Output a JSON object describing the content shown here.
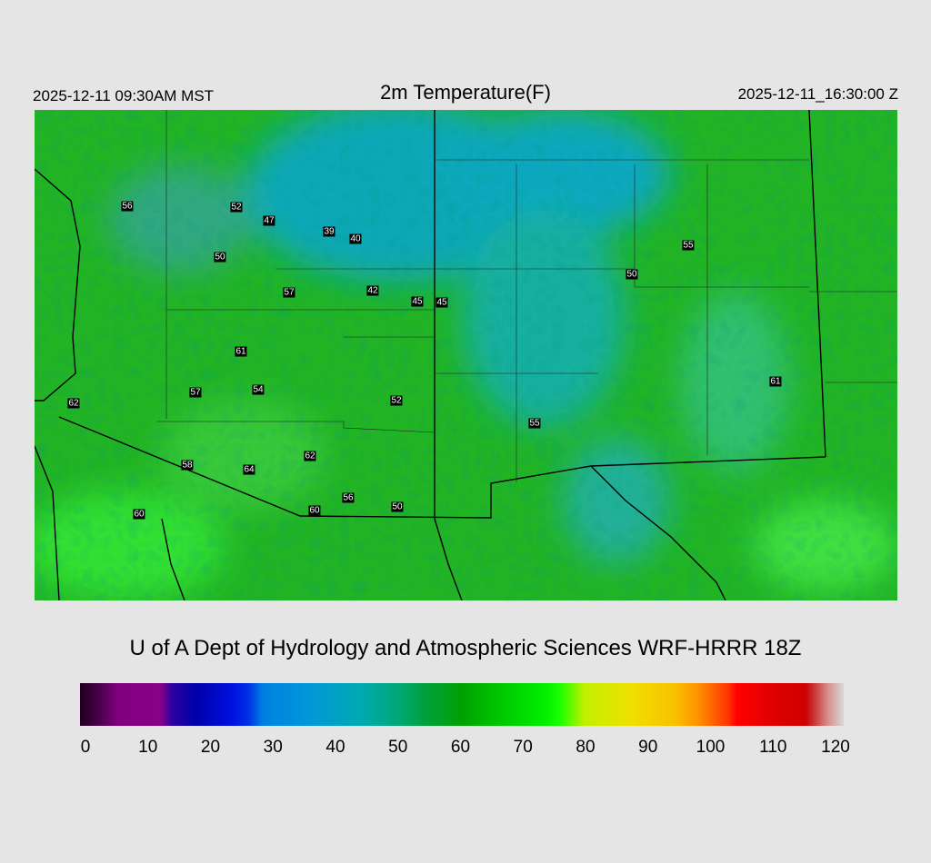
{
  "header": {
    "local_time": "2025-12-11 09:30AM MST",
    "title": "2m Temperature(F)",
    "utc_time": "2025-12-11_16:30:00 Z"
  },
  "map": {
    "field": "2m temperature",
    "units": "F",
    "base_color": "#22b422",
    "cold_color": "#00a8c0",
    "stations": [
      "56",
      "52",
      "47",
      "39",
      "40",
      "50",
      "57",
      "42",
      "45",
      "45",
      "61",
      "57",
      "54",
      "62",
      "52",
      "55",
      "62",
      "58",
      "64",
      "56",
      "60",
      "50",
      "60",
      "50",
      "55",
      "61"
    ]
  },
  "credit": "U of A Dept of Hydrology and Atmospheric Sciences WRF-HRRR 18Z",
  "colorbar": {
    "min": 0,
    "max": 120,
    "ticks": [
      "0",
      "10",
      "20",
      "30",
      "40",
      "50",
      "60",
      "70",
      "80",
      "90",
      "100",
      "110",
      "120"
    ]
  }
}
